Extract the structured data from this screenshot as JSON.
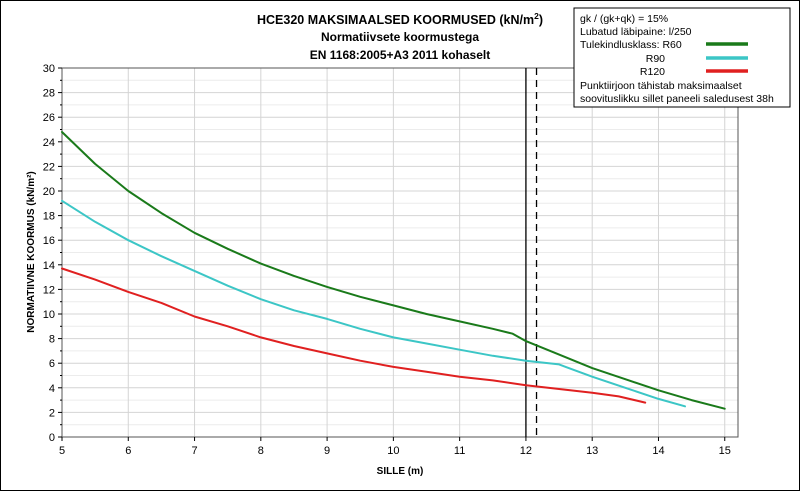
{
  "chart_data": {
    "type": "line",
    "title_main": "HCE320 MAKSIMAALSED KOORMUSED (kN/m",
    "title_sup": "2",
    "title_close": ")",
    "subtitle1": "Normatiivsete koormustega",
    "subtitle2": "EN 1168:2005+A3 2011 kohaselt",
    "xlabel": "SILLE (m)",
    "ylabel": "NORMATIIVNE KOORMUS (kN/m²)",
    "xlim": [
      5,
      15.2
    ],
    "ylim": [
      0,
      30
    ],
    "xticks": [
      5,
      6,
      7,
      8,
      9,
      10,
      11,
      12,
      13,
      14,
      15
    ],
    "yticks": [
      0,
      2,
      4,
      6,
      8,
      10,
      12,
      14,
      16,
      18,
      20,
      22,
      24,
      26,
      28,
      30
    ],
    "grid": true,
    "reference_lines": [
      {
        "x": 12.0,
        "style": "solid"
      },
      {
        "x": 12.16,
        "style": "dashed"
      }
    ],
    "series": [
      {
        "name": "R60",
        "color": "#1a7a1a",
        "x": [
          5.0,
          5.5,
          6.0,
          6.5,
          7.0,
          7.5,
          8.0,
          8.5,
          9.0,
          9.5,
          10.0,
          10.5,
          11.0,
          11.5,
          11.8,
          12.0,
          12.5,
          13.0,
          13.5,
          14.0,
          14.5,
          15.0
        ],
        "y": [
          24.8,
          22.2,
          20.0,
          18.2,
          16.6,
          15.3,
          14.1,
          13.1,
          12.2,
          11.4,
          10.7,
          10.0,
          9.4,
          8.8,
          8.4,
          7.8,
          6.7,
          5.6,
          4.7,
          3.8,
          3.0,
          2.3
        ]
      },
      {
        "name": "R90",
        "color": "#3cc6c6",
        "x": [
          5.0,
          5.5,
          6.0,
          6.5,
          7.0,
          7.5,
          8.0,
          8.5,
          9.0,
          9.5,
          10.0,
          10.5,
          11.0,
          11.5,
          12.0,
          12.5,
          12.6,
          13.0,
          13.5,
          14.0,
          14.4
        ],
        "y": [
          19.2,
          17.5,
          16.0,
          14.7,
          13.5,
          12.3,
          11.2,
          10.3,
          9.6,
          8.8,
          8.1,
          7.6,
          7.1,
          6.6,
          6.2,
          5.9,
          5.7,
          4.9,
          4.0,
          3.1,
          2.5
        ]
      },
      {
        "name": "R120",
        "color": "#e02020",
        "x": [
          5.0,
          5.5,
          6.0,
          6.5,
          7.0,
          7.5,
          8.0,
          8.5,
          9.0,
          9.5,
          10.0,
          10.5,
          11.0,
          11.5,
          12.0,
          12.5,
          13.0,
          13.4,
          13.8
        ],
        "y": [
          13.7,
          12.8,
          11.8,
          10.9,
          9.8,
          9.0,
          8.1,
          7.4,
          6.8,
          6.2,
          5.7,
          5.3,
          4.9,
          4.6,
          4.2,
          3.9,
          3.6,
          3.3,
          2.8
        ]
      }
    ],
    "legend": {
      "lines": [
        "gk / (gk+qk) = 15%",
        "Lubatud läbipaine: l/250",
        "Tulekindlusklass: R60",
        "R90",
        "R120",
        "Punktiirjoon tähistab maksimaalset",
        "soovituslikku sillet paneeli saledusest 38h"
      ],
      "placement": "top-right"
    }
  }
}
